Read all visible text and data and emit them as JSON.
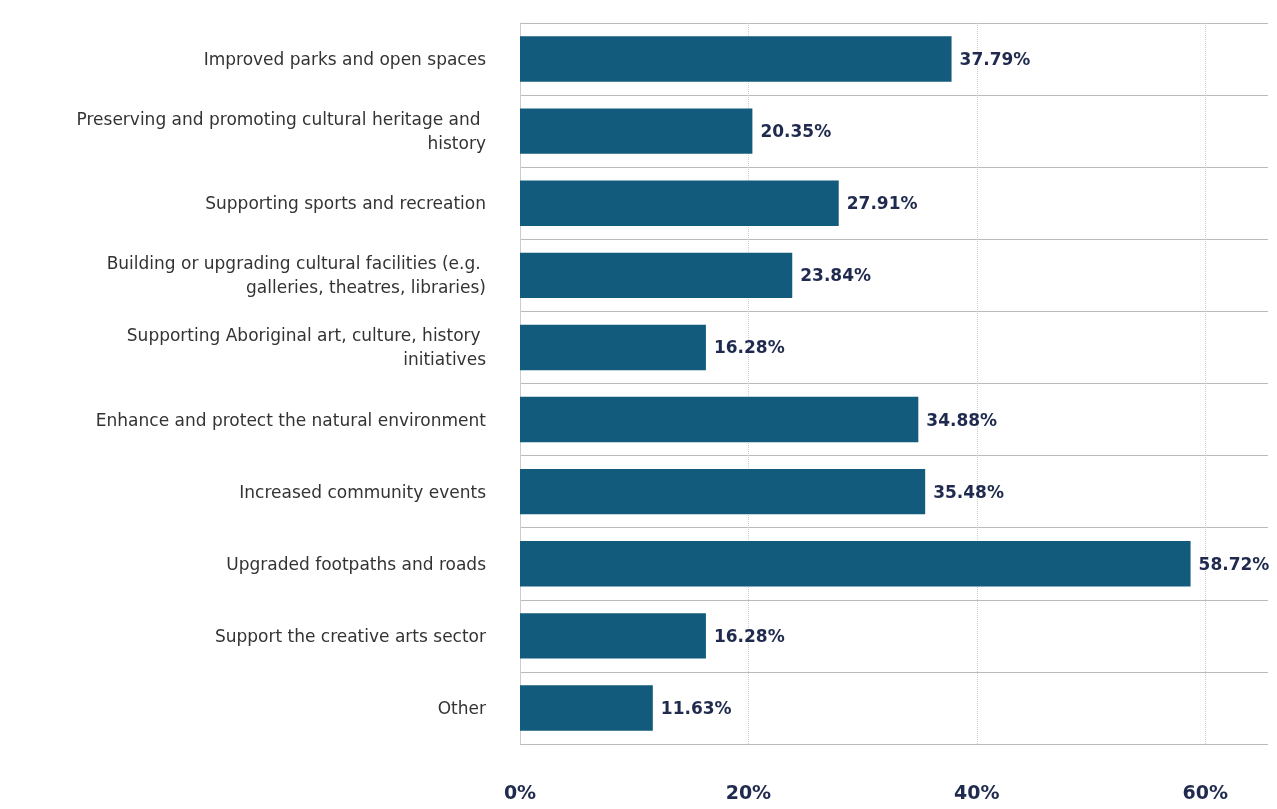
{
  "chart_data": {
    "type": "bar",
    "orientation": "horizontal",
    "categories": [
      "Improved parks and open spaces",
      "Preserving and promoting cultural heritage and history",
      "Supporting sports and recreation",
      "Building or upgrading cultural facilities (e.g. galleries, theatres, libraries)",
      "Supporting Aboriginal art, culture, history initiatives",
      "Enhance and protect the natural environment",
      "Increased community events",
      "Upgraded footpaths and roads",
      "Support the creative arts sector",
      "Other"
    ],
    "values": [
      37.79,
      20.35,
      27.91,
      23.84,
      16.28,
      34.88,
      35.48,
      58.72,
      16.28,
      11.63
    ],
    "value_labels": [
      "37.79%",
      "20.35%",
      "27.91%",
      "23.84%",
      "16.28%",
      "34.88%",
      "35.48%",
      "58.72%",
      "16.28%",
      "11.63%"
    ],
    "color": "#125b7d",
    "xlim": [
      0,
      65.5
    ],
    "xticks": [
      {
        "value": 0,
        "label": "0%"
      },
      {
        "value": 20,
        "label": "20%"
      },
      {
        "value": 40,
        "label": "40%"
      },
      {
        "value": 60,
        "label": "60%"
      }
    ],
    "grid": true
  }
}
